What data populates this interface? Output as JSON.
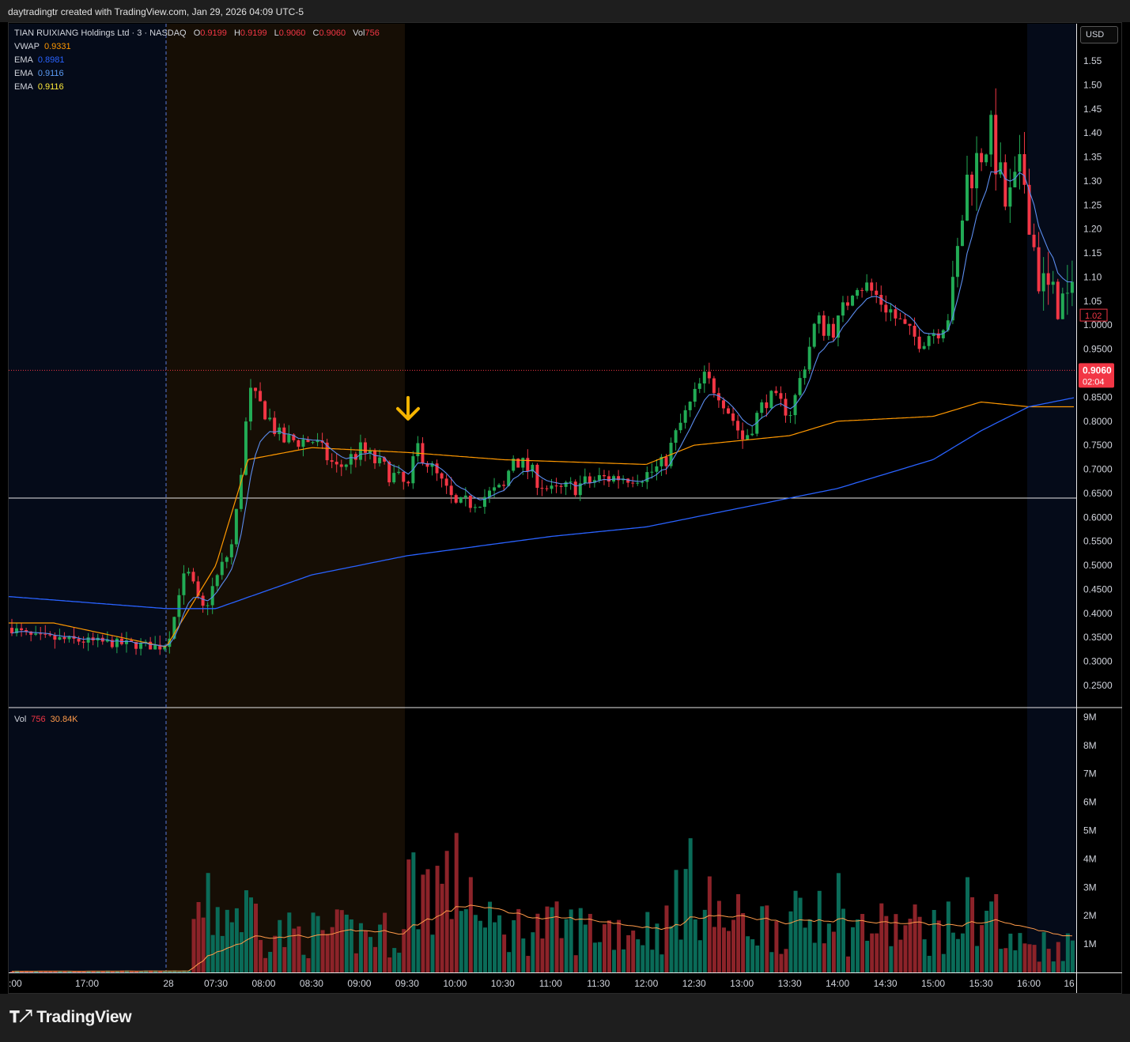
{
  "header": {
    "credit": "daytradingtr created with TradingView.com, Jan 29, 2026 04:09 UTC-5"
  },
  "legend": {
    "symbol": "TIAN RUIXIANG Holdings Ltd · 3 · NASDAQ",
    "ohlc": [
      {
        "k": "O",
        "v": "0.9199"
      },
      {
        "k": "H",
        "v": "0.9199"
      },
      {
        "k": "L",
        "v": "0.9060"
      },
      {
        "k": "C",
        "v": "0.9060"
      },
      {
        "k": "Vol",
        "v": "756"
      }
    ],
    "indicators": [
      {
        "name": "VWAP",
        "value": "0.9331",
        "color": "#ff9800"
      },
      {
        "name": "EMA",
        "value": "0.8981",
        "color": "#2962ff"
      },
      {
        "name": "EMA",
        "value": "0.9116",
        "color": "#5b9cf6"
      },
      {
        "name": "EMA",
        "value": "0.9116",
        "color": "#ffeb3b"
      }
    ],
    "volume": {
      "name": "Vol",
      "value": "756",
      "ma": "30.84K"
    }
  },
  "currency_button": "USD",
  "price_labels": {
    "last": "0.9060",
    "countdown": "02:04",
    "marker": "1.02"
  },
  "footer": {
    "brand": "TradingView"
  },
  "colors": {
    "up": "#089981",
    "down": "#f23645",
    "upWick": "#22ab55",
    "vwap": "#ff9800",
    "ema_slow": "#2962ff",
    "ema_fast": "#5b8def",
    "premarket": "#160e05",
    "afterhours": "#050b19",
    "volume_ma": "#ff9b4a"
  },
  "chart_data": {
    "type": "candlestick",
    "price_axis": {
      "min": 0.2,
      "max": 1.6,
      "ticks": [
        "1.55",
        "1.50",
        "1.45",
        "1.40",
        "1.35",
        "1.30",
        "1.25",
        "1.20",
        "1.15",
        "1.10",
        "1.05",
        "1.0000",
        "0.9500",
        "0.9060",
        "0.8500",
        "0.8000",
        "0.7500",
        "0.7000",
        "0.6500",
        "0.6000",
        "0.5500",
        "0.5000",
        "0.4500",
        "0.4000",
        "0.3500",
        "0.3000",
        "0.2500"
      ]
    },
    "volume_axis": {
      "min": 0,
      "max": 9,
      "unit": "M",
      "ticks": [
        "9M",
        "8M",
        "7M",
        "6M",
        "5M",
        "4M",
        "3M",
        "2M",
        "1M"
      ]
    },
    "time_ticks": [
      ":00",
      "17:00",
      "28",
      "07:30",
      "08:00",
      "08:30",
      "09:00",
      "09:30",
      "10:00",
      "10:30",
      "11:00",
      "11:30",
      "12:00",
      "12:30",
      "13:00",
      "13:30",
      "14:00",
      "14:30",
      "15:00",
      "15:30",
      "16:00",
      "16"
    ],
    "horizontal_line": 0.64,
    "last_price": 0.906,
    "annotation": {
      "type": "arrow-down",
      "at_time": "09:30",
      "price": 0.78
    },
    "ohlc_knots": [
      {
        "t": "16:30",
        "p": 0.37
      },
      {
        "t": "17:00",
        "p": 0.35
      },
      {
        "t": "07:00",
        "p": 0.33
      },
      {
        "t": "07:10",
        "p": 0.5
      },
      {
        "t": "07:20",
        "p": 0.4
      },
      {
        "t": "07:40",
        "p": 0.55
      },
      {
        "t": "07:50",
        "p": 0.86
      },
      {
        "t": "08:00",
        "p": 0.82
      },
      {
        "t": "08:10",
        "p": 0.76
      },
      {
        "t": "08:30",
        "p": 0.76
      },
      {
        "t": "08:45",
        "p": 0.7
      },
      {
        "t": "09:00",
        "p": 0.74
      },
      {
        "t": "09:15",
        "p": 0.7
      },
      {
        "t": "09:30",
        "p": 0.66
      },
      {
        "t": "09:35",
        "p": 0.75
      },
      {
        "t": "10:00",
        "p": 0.62
      },
      {
        "t": "10:30",
        "p": 0.66
      },
      {
        "t": "10:35",
        "p": 0.73
      },
      {
        "t": "11:00",
        "p": 0.65
      },
      {
        "t": "11:30",
        "p": 0.68
      },
      {
        "t": "12:00",
        "p": 0.69
      },
      {
        "t": "12:10",
        "p": 0.71
      },
      {
        "t": "12:20",
        "p": 0.79
      },
      {
        "t": "12:35",
        "p": 0.89
      },
      {
        "t": "12:45",
        "p": 0.86
      },
      {
        "t": "13:00",
        "p": 0.76
      },
      {
        "t": "13:15",
        "p": 0.85
      },
      {
        "t": "13:30",
        "p": 0.82
      },
      {
        "t": "13:45",
        "p": 1.0
      },
      {
        "t": "14:00",
        "p": 1.0
      },
      {
        "t": "14:10",
        "p": 1.1
      },
      {
        "t": "14:30",
        "p": 1.04
      },
      {
        "t": "14:45",
        "p": 0.97
      },
      {
        "t": "15:00",
        "p": 0.99
      },
      {
        "t": "15:10",
        "p": 1.03
      },
      {
        "t": "15:20",
        "p": 1.3
      },
      {
        "t": "15:35",
        "p": 1.4
      },
      {
        "t": "15:45",
        "p": 1.24
      },
      {
        "t": "15:55",
        "p": 1.33
      },
      {
        "t": "16:05",
        "p": 1.1
      },
      {
        "t": "16:15",
        "p": 1.05
      }
    ],
    "vwap_knots": [
      {
        "t": "16:30",
        "p": 0.38
      },
      {
        "t": "17:30",
        "p": 0.38
      },
      {
        "t": "07:00",
        "p": 0.33
      },
      {
        "t": "07:30",
        "p": 0.5
      },
      {
        "t": "07:50",
        "p": 0.72
      },
      {
        "t": "08:30",
        "p": 0.745
      },
      {
        "t": "09:30",
        "p": 0.735
      },
      {
        "t": "10:30",
        "p": 0.72
      },
      {
        "t": "12:00",
        "p": 0.71
      },
      {
        "t": "12:30",
        "p": 0.75
      },
      {
        "t": "13:30",
        "p": 0.77
      },
      {
        "t": "14:00",
        "p": 0.8
      },
      {
        "t": "15:00",
        "p": 0.81
      },
      {
        "t": "15:30",
        "p": 0.84
      },
      {
        "t": "16:00",
        "p": 0.83
      }
    ],
    "ema_slow_knots": [
      {
        "t": "16:30",
        "p": 0.435
      },
      {
        "t": "07:00",
        "p": 0.41
      },
      {
        "t": "07:30",
        "p": 0.41
      },
      {
        "t": "08:30",
        "p": 0.48
      },
      {
        "t": "09:30",
        "p": 0.52
      },
      {
        "t": "11:00",
        "p": 0.56
      },
      {
        "t": "12:00",
        "p": 0.58
      },
      {
        "t": "13:00",
        "p": 0.62
      },
      {
        "t": "14:00",
        "p": 0.66
      },
      {
        "t": "15:00",
        "p": 0.72
      },
      {
        "t": "15:30",
        "p": 0.78
      },
      {
        "t": "16:00",
        "p": 0.83
      },
      {
        "t": "16:30",
        "p": 0.85
      }
    ]
  }
}
